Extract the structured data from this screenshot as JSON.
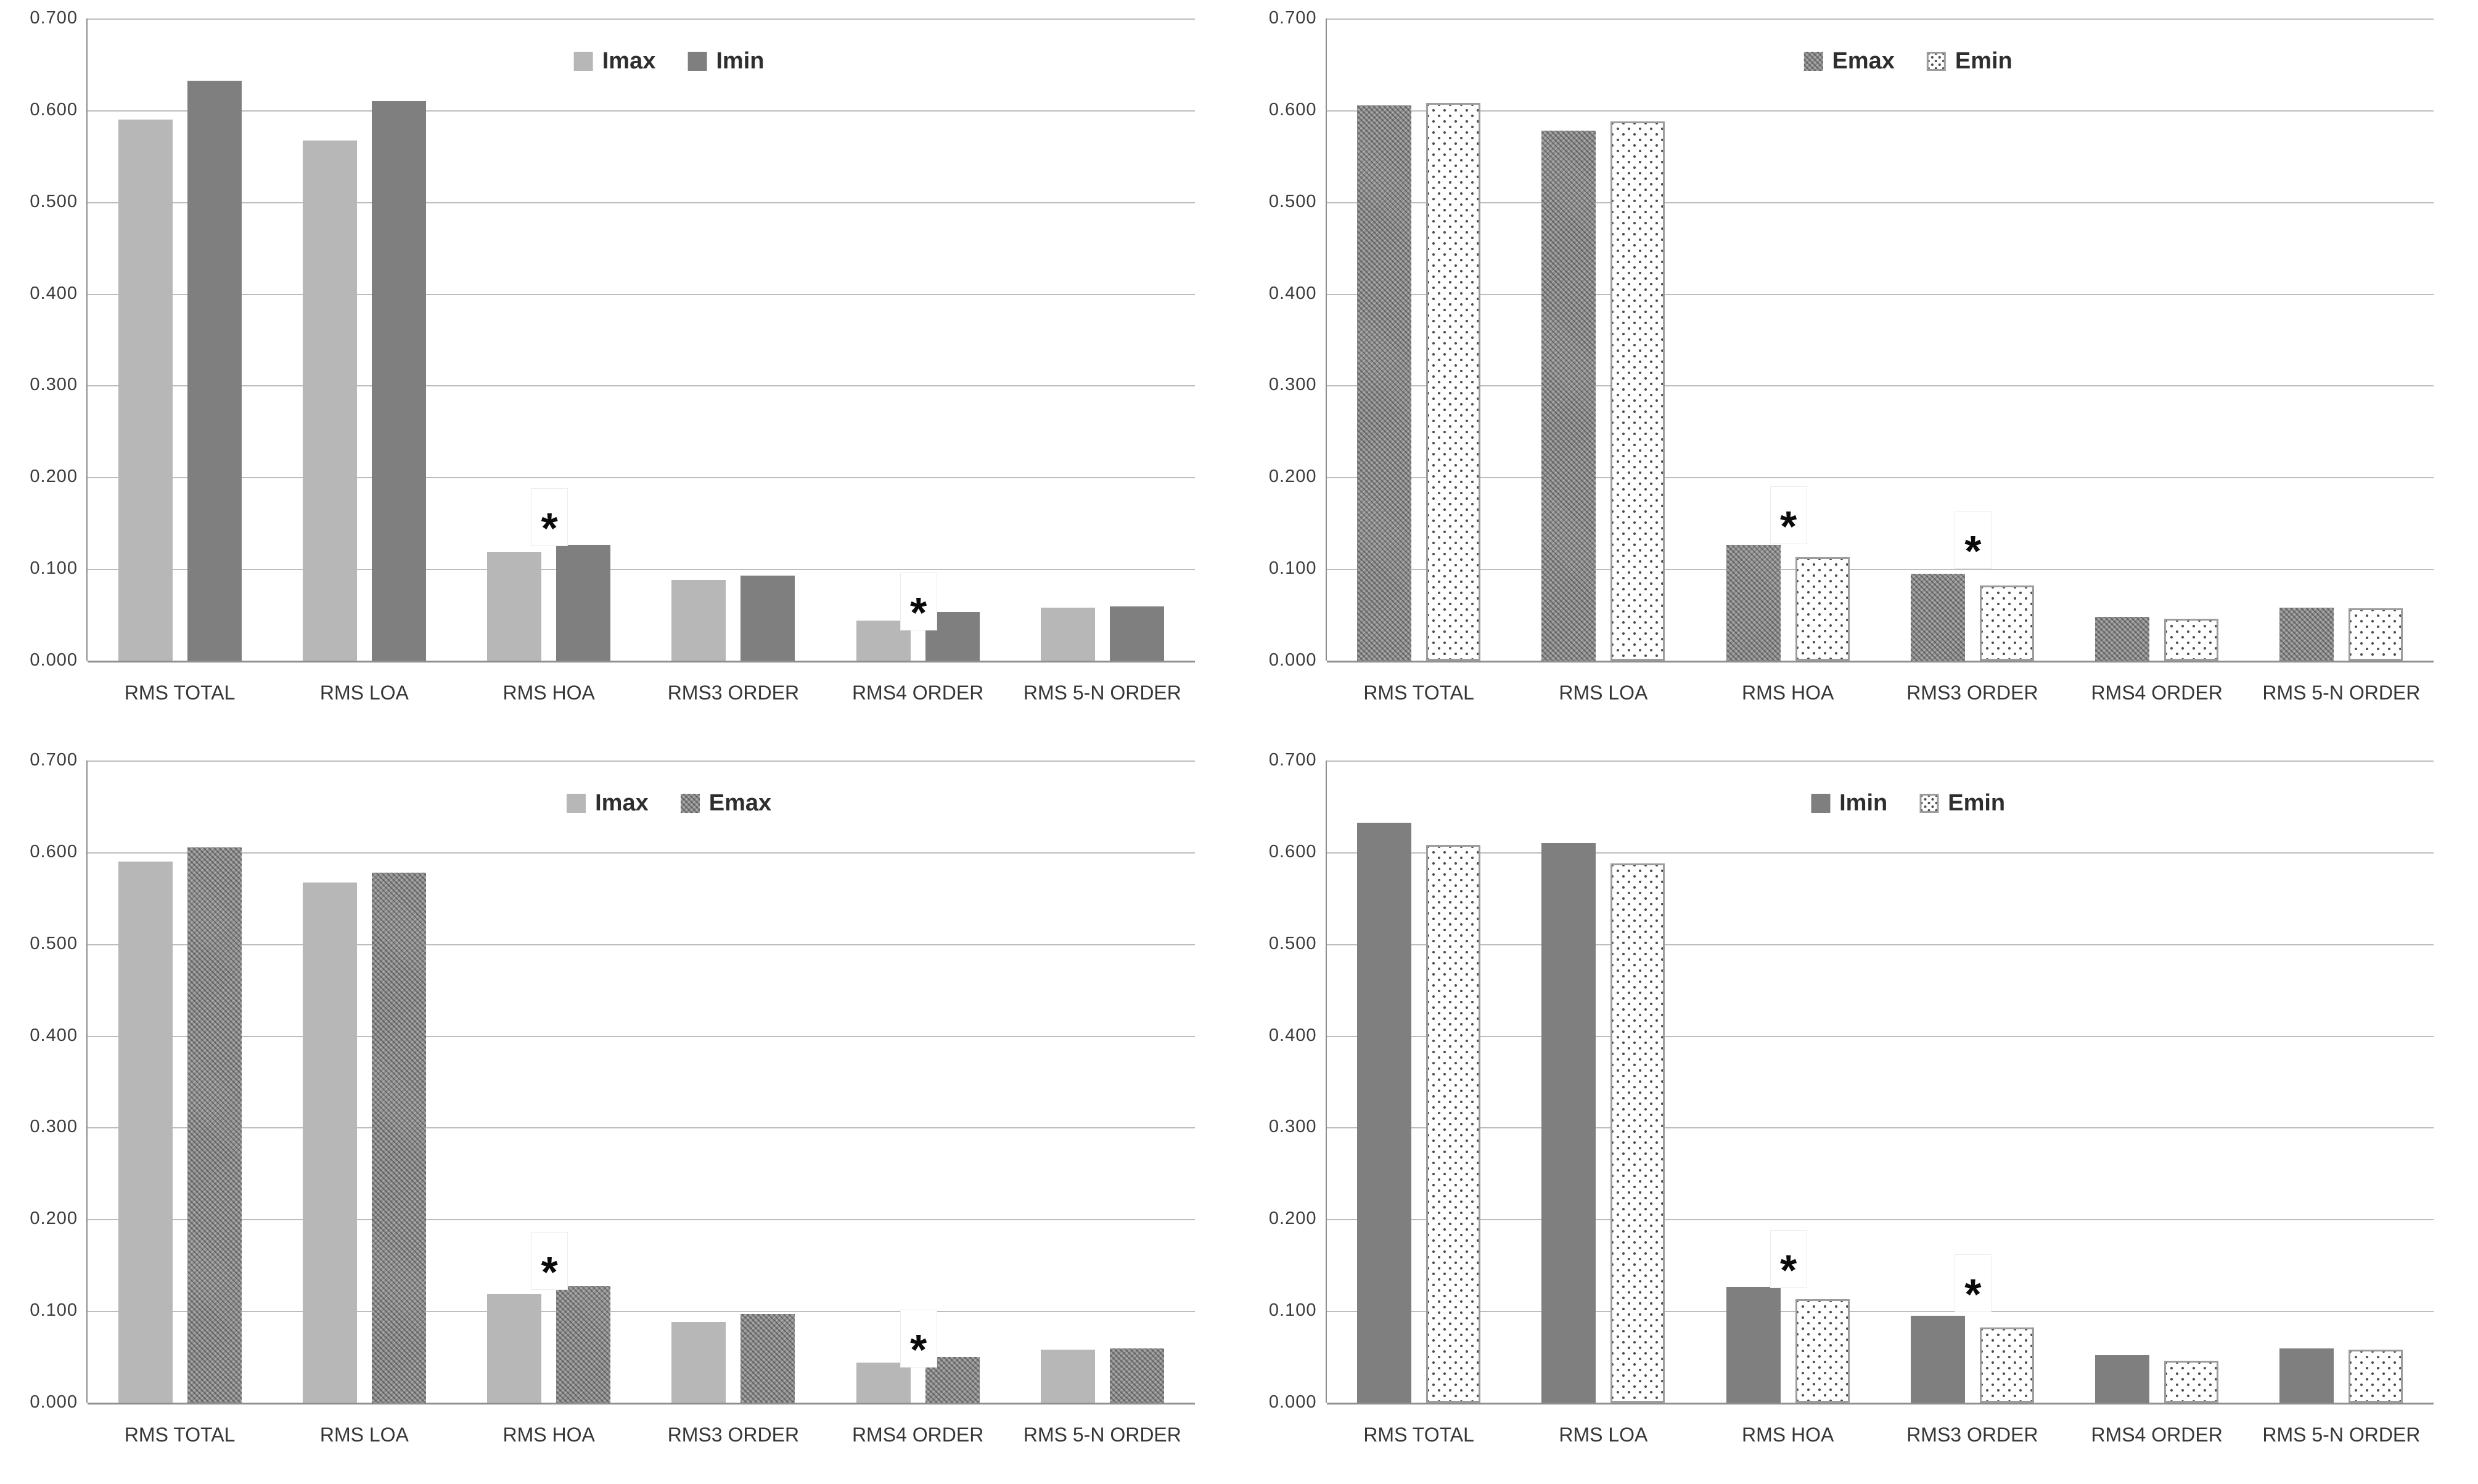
{
  "page": {
    "background": "#ffffff"
  },
  "axis": {
    "y_tick_labels": [
      "0.700",
      "0.600",
      "0.500",
      "0.400",
      "0.300",
      "0.200",
      "0.100",
      "0.000"
    ],
    "y_min": 0.0,
    "y_max": 0.7,
    "grid": true
  },
  "colors": {
    "light_solid": "#b7b7b7",
    "dark_solid": "#7f7f7f",
    "dark_pattern_base": "#8d8d8d",
    "dot_pattern_dot": "#4d4d4d",
    "gridline": "#bdbdbd",
    "axis_line": "#8f8f8f",
    "text": "#363636"
  },
  "annotation_symbol": "*",
  "chart_data": [
    {
      "type": "bar",
      "position": "top-left",
      "title": "",
      "xlabel": "",
      "ylabel": "",
      "ylim": [
        0,
        0.7
      ],
      "legend_position": "top-center",
      "categories": [
        "RMS TOTAL",
        "RMS LOA",
        "RMS HOA",
        "RMS3 ORDER",
        "RMS4 ORDER",
        "RMS 5-N ORDER"
      ],
      "series": [
        {
          "name": "Imax",
          "style": "light-solid",
          "values": [
            0.59,
            0.567,
            0.118,
            0.088,
            0.044,
            0.058
          ]
        },
        {
          "name": "Imin",
          "style": "dark-solid",
          "values": [
            0.632,
            0.61,
            0.126,
            0.093,
            0.053,
            0.059
          ]
        }
      ],
      "annotations": [
        {
          "category_index": 2,
          "value": 0.156,
          "symbol": "*"
        },
        {
          "category_index": 4,
          "value": 0.064,
          "symbol": "*"
        }
      ]
    },
    {
      "type": "bar",
      "position": "top-right",
      "title": "",
      "xlabel": "",
      "ylabel": "",
      "ylim": [
        0,
        0.7
      ],
      "legend_position": "top-center",
      "categories": [
        "RMS TOTAL",
        "RMS LOA",
        "RMS HOA",
        "RMS3 ORDER",
        "RMS4 ORDER",
        "RMS 5-N ORDER"
      ],
      "series": [
        {
          "name": "Emax",
          "style": "dark-pattern",
          "values": [
            0.605,
            0.578,
            0.126,
            0.095,
            0.048,
            0.058
          ]
        },
        {
          "name": "Emin",
          "style": "dot-pattern",
          "values": [
            0.608,
            0.588,
            0.113,
            0.082,
            0.046,
            0.057
          ]
        }
      ],
      "annotations": [
        {
          "category_index": 2,
          "value": 0.158,
          "symbol": "*"
        },
        {
          "category_index": 3,
          "value": 0.131,
          "symbol": "*"
        }
      ]
    },
    {
      "type": "bar",
      "position": "bottom-left",
      "title": "",
      "xlabel": "",
      "ylabel": "",
      "ylim": [
        0,
        0.7
      ],
      "legend_position": "top-center",
      "categories": [
        "RMS TOTAL",
        "RMS LOA",
        "RMS HOA",
        "RMS3 ORDER",
        "RMS4 ORDER",
        "RMS 5-N ORDER"
      ],
      "series": [
        {
          "name": "Imax",
          "style": "light-solid",
          "values": [
            0.59,
            0.567,
            0.118,
            0.088,
            0.044,
            0.058
          ]
        },
        {
          "name": "Emax",
          "style": "dark-pattern",
          "values": [
            0.605,
            0.578,
            0.127,
            0.097,
            0.05,
            0.059
          ]
        }
      ],
      "annotations": [
        {
          "category_index": 2,
          "value": 0.154,
          "symbol": "*"
        },
        {
          "category_index": 4,
          "value": 0.069,
          "symbol": "*"
        }
      ]
    },
    {
      "type": "bar",
      "position": "bottom-right",
      "title": "",
      "xlabel": "",
      "ylabel": "",
      "ylim": [
        0,
        0.7
      ],
      "legend_position": "top-center",
      "categories": [
        "RMS TOTAL",
        "RMS LOA",
        "RMS HOA",
        "RMS3 ORDER",
        "RMS4 ORDER",
        "RMS 5-N ORDER"
      ],
      "series": [
        {
          "name": "Imin",
          "style": "dark-solid",
          "values": [
            0.632,
            0.61,
            0.126,
            0.095,
            0.052,
            0.059
          ]
        },
        {
          "name": "Emin",
          "style": "dot-pattern",
          "values": [
            0.608,
            0.588,
            0.113,
            0.082,
            0.046,
            0.058
          ]
        }
      ],
      "annotations": [
        {
          "category_index": 2,
          "value": 0.156,
          "symbol": "*"
        },
        {
          "category_index": 3,
          "value": 0.13,
          "symbol": "*"
        }
      ]
    }
  ]
}
